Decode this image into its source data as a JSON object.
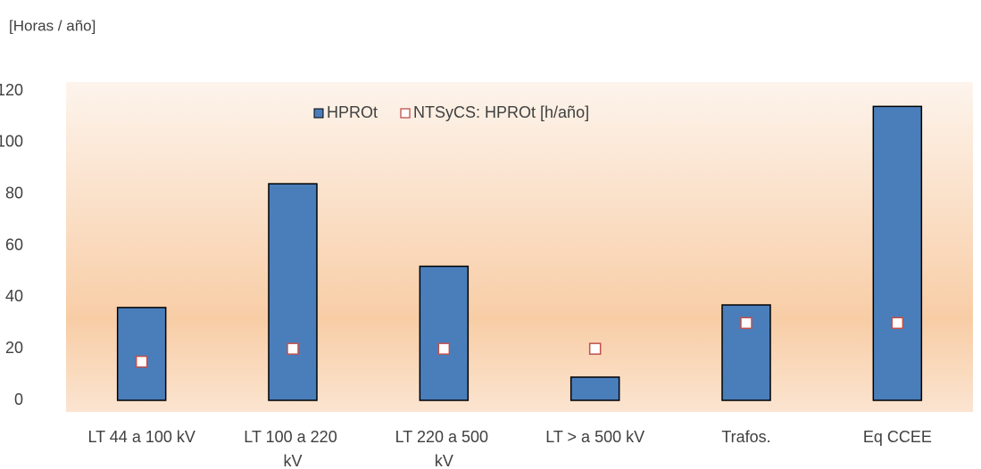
{
  "chart_data": {
    "type": "bar",
    "y_label": "[Horas  / año]",
    "categories": [
      "LT 44 a 100 kV",
      "LT 100 a 220 kV",
      "LT 220 a 500 kV",
      "LT > a 500 kV",
      "Trafos.",
      "Eq CCEE"
    ],
    "series": [
      {
        "name": "HPROt",
        "color": "#4a7ebb",
        "kind": "bar",
        "values": [
          36,
          84,
          52,
          9,
          37,
          114
        ]
      },
      {
        "name": "NTSyCS: HPROt [h/año]",
        "color": "#c0504d",
        "kind": "marker",
        "values": [
          15,
          20,
          20,
          20,
          30,
          30
        ]
      }
    ],
    "ylim": [
      0,
      120
    ],
    "yticks": [
      0,
      20,
      40,
      60,
      80,
      100,
      120
    ],
    "legend": "top"
  }
}
